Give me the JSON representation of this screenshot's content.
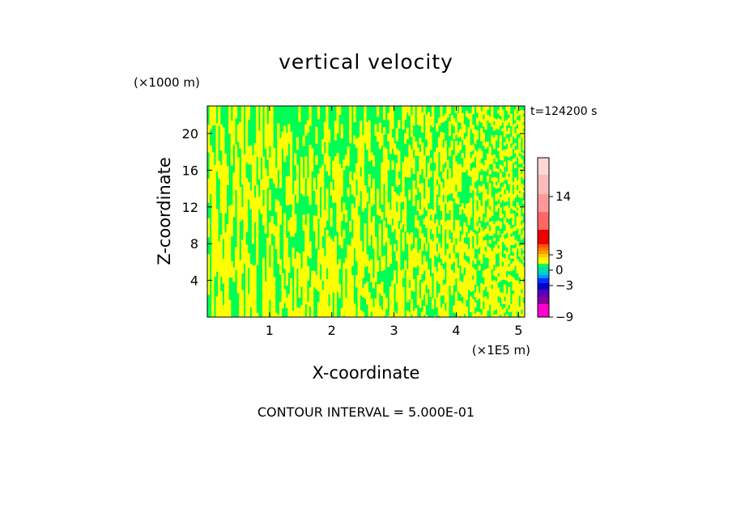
{
  "chart_data": {
    "type": "heatmap",
    "title": "vertical velocity",
    "xlabel": "X-coordinate",
    "ylabel": "Z-coordinate",
    "x_unit": "(×1E5 m)",
    "y_unit": "(×1000 m)",
    "time_label": "t=124200 s",
    "footer": "CONTOUR INTERVAL = 5.000E-01",
    "xlim": [
      0,
      5.1
    ],
    "ylim": [
      0,
      23
    ],
    "xticks": [
      1,
      2,
      3,
      4,
      5
    ],
    "yticks": [
      4,
      8,
      12,
      16,
      20
    ],
    "colorbar": {
      "levels": [
        -9,
        -7.5,
        -6,
        -4.5,
        -3,
        -2,
        -1.5,
        -1,
        -0.5,
        0,
        0.5,
        1,
        1.5,
        2,
        2.5,
        3,
        5.5,
        11,
        14,
        17,
        19
      ],
      "colors": [
        "#ff00cc",
        "#880099",
        "#5500bb",
        "#0000cc",
        "#0033ff",
        "#0099ff",
        "#00cccc",
        "#00ddaa",
        "#00ff55",
        "#ffff00",
        "#ffee00",
        "#ffcc00",
        "#ff9900",
        "#ff7700",
        "#ff5500",
        "#ee0000",
        "#ff6666",
        "#ff9999",
        "#ffbbbb",
        "#ffd6d6"
      ],
      "tick_labels": [
        {
          "value": -9,
          "label": "−9"
        },
        {
          "value": -3,
          "label": "−3"
        },
        {
          "value": 0,
          "label": "0"
        },
        {
          "value": 3,
          "label": "3"
        },
        {
          "value": 14,
          "label": "14"
        }
      ]
    },
    "field_colors": {
      "negative": "#00ff55",
      "positive": "#ffff00"
    }
  }
}
